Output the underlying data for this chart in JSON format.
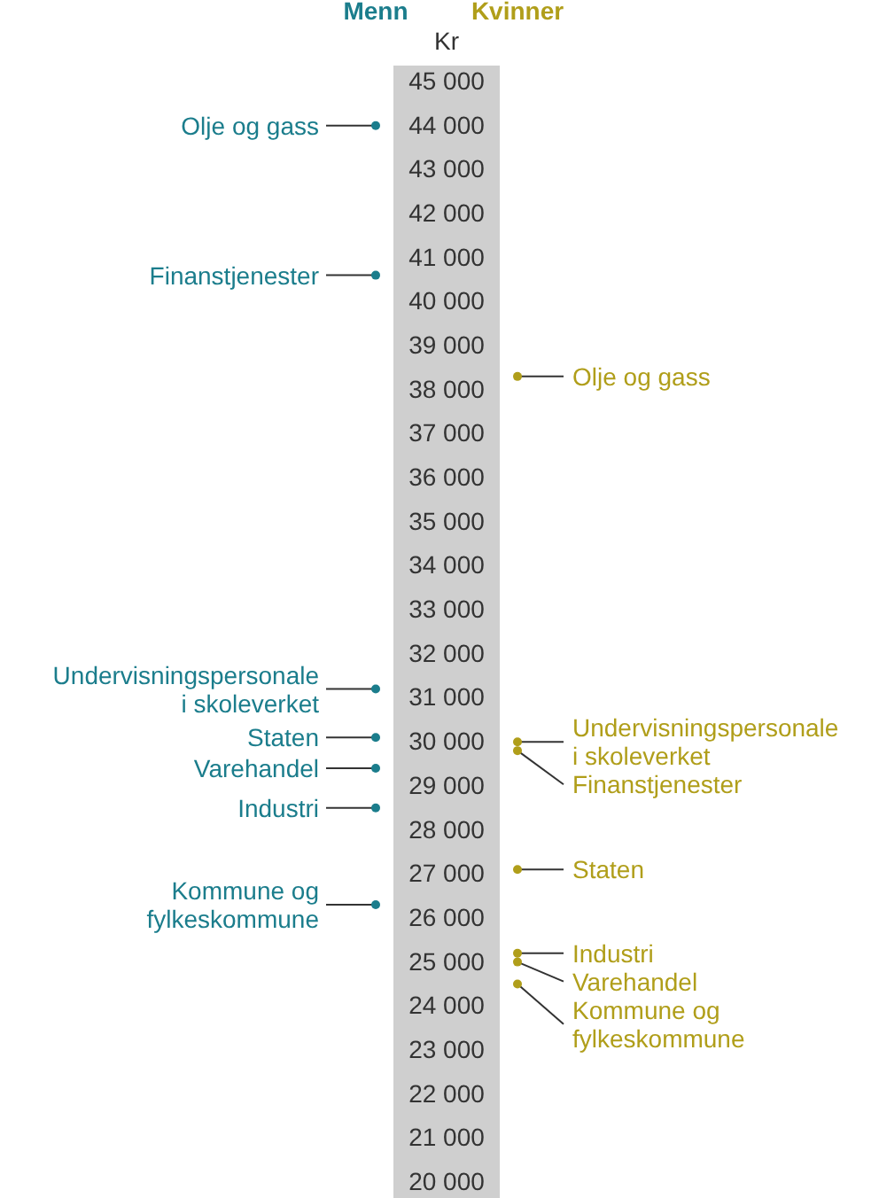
{
  "chart_data": {
    "type": "scatter",
    "ylabel": "Kr",
    "categories": [
      "Menn",
      "Kvinner"
    ],
    "series": [
      {
        "name": "Olje og gass",
        "colors": [
          "#1b7d8c",
          "#b09e1a"
        ],
        "values": [
          44000,
          38300
        ]
      },
      {
        "name": "Finanstjenester",
        "colors": [
          "#1b7d8c",
          "#b09e1a"
        ],
        "values": [
          40600,
          29800
        ]
      },
      {
        "name": "Undervisningspersonale i skoleverket",
        "colors": [
          "#1b7d8c",
          "#b09e1a"
        ],
        "values": [
          31200,
          30000
        ]
      },
      {
        "name": "Staten",
        "colors": [
          "#1b7d8c",
          "#b09e1a"
        ],
        "values": [
          30100,
          27100
        ]
      },
      {
        "name": "Varehandel",
        "colors": [
          "#1b7d8c",
          "#b09e1a"
        ],
        "values": [
          29400,
          25000
        ]
      },
      {
        "name": "Industri",
        "colors": [
          "#1b7d8c",
          "#b09e1a"
        ],
        "values": [
          28500,
          25200
        ]
      },
      {
        "name": "Kommune og fylkeskommune",
        "colors": [
          "#1b7d8c",
          "#b09e1a"
        ],
        "values": [
          26300,
          24500
        ]
      }
    ],
    "ylim": [
      20000,
      45000
    ],
    "yticks": [
      {
        "value": 20000,
        "label": "20 000"
      },
      {
        "value": 21000,
        "label": "21 000"
      },
      {
        "value": 22000,
        "label": "22 000"
      },
      {
        "value": 23000,
        "label": "23 000"
      },
      {
        "value": 24000,
        "label": "24 000"
      },
      {
        "value": 25000,
        "label": "25 000"
      },
      {
        "value": 26000,
        "label": "26 000"
      },
      {
        "value": 27000,
        "label": "27 000"
      },
      {
        "value": 28000,
        "label": "28 000"
      },
      {
        "value": 29000,
        "label": "29 000"
      },
      {
        "value": 30000,
        "label": "30 000"
      },
      {
        "value": 31000,
        "label": "31 000"
      },
      {
        "value": 32000,
        "label": "32 000"
      },
      {
        "value": 33000,
        "label": "33 000"
      },
      {
        "value": 34000,
        "label": "34 000"
      },
      {
        "value": 35000,
        "label": "35 000"
      },
      {
        "value": 36000,
        "label": "36 000"
      },
      {
        "value": 37000,
        "label": "37 000"
      },
      {
        "value": 38000,
        "label": "38 000"
      },
      {
        "value": 39000,
        "label": "39 000"
      },
      {
        "value": 40000,
        "label": "40 000"
      },
      {
        "value": 41000,
        "label": "41 000"
      },
      {
        "value": 42000,
        "label": "42 000"
      },
      {
        "value": 43000,
        "label": "43 000"
      },
      {
        "value": 44000,
        "label": "44 000"
      },
      {
        "value": 45000,
        "label": "45 000"
      }
    ]
  }
}
